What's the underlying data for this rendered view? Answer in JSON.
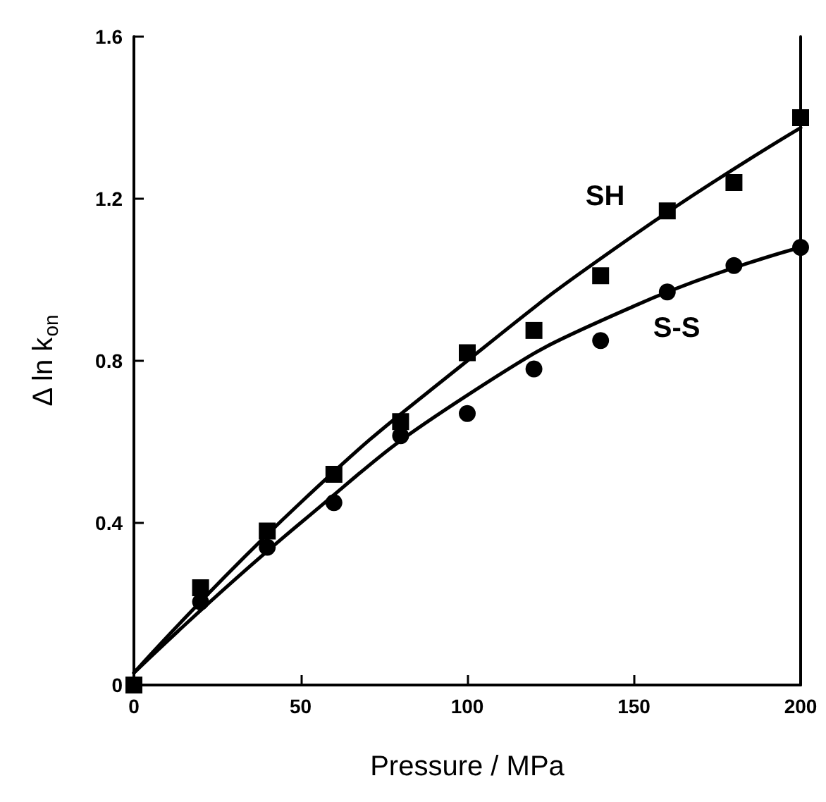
{
  "chart_data": {
    "type": "scatter",
    "xlabel": "Pressure / MPa",
    "ylabel": "Δ ln k$_{on}$",
    "x": [
      0,
      20,
      40,
      60,
      80,
      100,
      120,
      140,
      160,
      180,
      200
    ],
    "series": [
      {
        "name": "SH",
        "color": "#000000",
        "marker": "square",
        "values": [
          0,
          0.24,
          0.38,
          0.52,
          0.65,
          0.82,
          0.875,
          1.01,
          1.17,
          1.24,
          1.4
        ]
      },
      {
        "name": "S-S",
        "color": "#000000",
        "marker": "circle",
        "values": [
          null,
          0.205,
          0.34,
          0.45,
          0.615,
          0.67,
          0.78,
          0.85,
          0.97,
          1.035,
          1.08
        ]
      },
      {
        "type": "line",
        "color": "#000000",
        "marker": "none",
        "line_style": "solid",
        "x": [
          0,
          50,
          100,
          150,
          200
        ],
        "values": [
          0.03,
          0.45,
          0.8,
          1.11,
          1.375
        ]
      },
      {
        "type": "line",
        "color": "#000000",
        "marker": "none",
        "line_style": "solid",
        "x": [
          0,
          50,
          100,
          150,
          200
        ],
        "values": [
          0.03,
          0.4,
          0.715,
          0.935,
          1.08
        ]
      }
    ],
    "xlim": [
      0,
      200
    ],
    "xticks": [
      0,
      50,
      100,
      150,
      200
    ],
    "ylim": [
      0,
      1.6
    ],
    "yticks": [
      0,
      0.4,
      0.8,
      1.2,
      1.6
    ],
    "grid": false,
    "legend": false
  }
}
